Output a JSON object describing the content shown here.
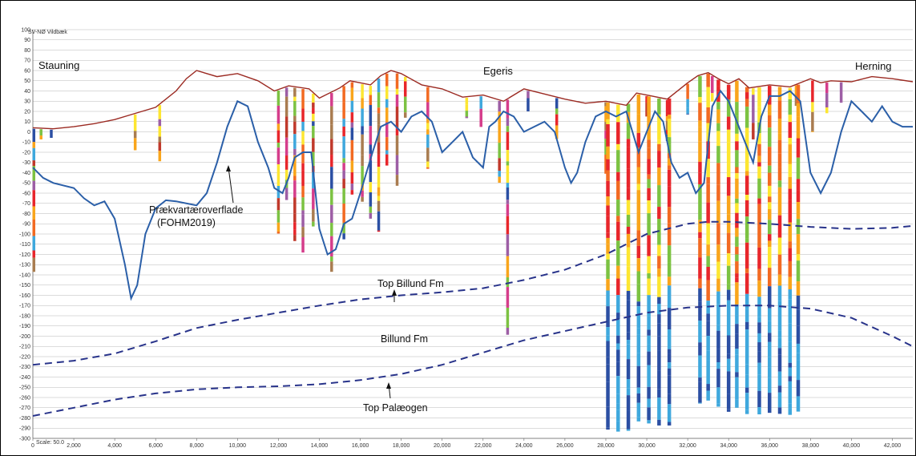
{
  "profile_name": "SV-NØ Vildbæk",
  "scale_label": "Scale: 50.0",
  "places": [
    {
      "name": "Stauning",
      "x": 0
    },
    {
      "name": "Egeris",
      "x": 22000
    },
    {
      "name": "Herning",
      "x": 42200
    }
  ],
  "annotations": {
    "prequaternary_line1": "Prækvartæroverflade",
    "prequaternary_line2": "(FOHM2019)",
    "top_billund": "Top Billund Fm",
    "billund": "Billund Fm",
    "top_palaeogen": "Top Palæogen"
  },
  "colors": {
    "terrain": "#9b2a22",
    "prequaternary": "#2b5fa8",
    "formation": "#28338a",
    "grid": "#b8b8b8"
  },
  "chart_data": {
    "type": "line",
    "xlim": [
      0,
      43000
    ],
    "ylim": [
      -300,
      100
    ],
    "x_ticks": [
      0,
      2000,
      4000,
      6000,
      8000,
      10000,
      12000,
      14000,
      16000,
      18000,
      20000,
      22000,
      24000,
      26000,
      28000,
      30000,
      32000,
      34000,
      36000,
      38000,
      40000,
      42000
    ],
    "x_tick_labels": [
      "0",
      "2,000",
      "4,000",
      "6,000",
      "8,000",
      "10,000",
      "12,000",
      "14,000",
      "16,000",
      "18,000",
      "20,000",
      "22,000",
      "24,000",
      "26,000",
      "28,000",
      "30,000",
      "32,000",
      "34,000",
      "36,000",
      "38,000",
      "40,000",
      "42,000"
    ],
    "y_ticks": [
      100,
      90,
      80,
      70,
      60,
      50,
      40,
      30,
      20,
      10,
      0,
      -10,
      -20,
      -30,
      -40,
      -50,
      -60,
      -70,
      -80,
      -90,
      -100,
      -110,
      -120,
      -130,
      -140,
      -150,
      -160,
      -170,
      -180,
      -190,
      -200,
      -210,
      -220,
      -230,
      -240,
      -250,
      -260,
      -270,
      -280,
      -290,
      -300
    ],
    "grid": true,
    "terrain": {
      "x": [
        0,
        1000,
        2000,
        3000,
        4000,
        5000,
        6000,
        7000,
        7500,
        8000,
        9000,
        10000,
        11000,
        11800,
        12500,
        13500,
        14000,
        15000,
        15500,
        16500,
        17000,
        17500,
        18000,
        19000,
        20000,
        21000,
        22000,
        23000,
        24000,
        25000,
        26000,
        27000,
        28000,
        29000,
        29500,
        30000,
        31000,
        32000,
        32500,
        33000,
        33500,
        34000,
        34500,
        35000,
        36000,
        37000,
        38000,
        38500,
        39000,
        40000,
        41000,
        42000,
        43000
      ],
      "y": [
        4,
        3,
        5,
        8,
        12,
        18,
        24,
        40,
        52,
        60,
        54,
        57,
        50,
        40,
        45,
        42,
        33,
        43,
        50,
        46,
        55,
        60,
        57,
        46,
        42,
        34,
        36,
        30,
        42,
        37,
        32,
        28,
        30,
        26,
        38,
        36,
        32,
        48,
        55,
        58,
        52,
        47,
        52,
        43,
        46,
        44,
        52,
        48,
        50,
        49,
        54,
        52,
        49
      ]
    },
    "prequaternary_surface": {
      "x": [
        0,
        500,
        1000,
        2000,
        2500,
        3000,
        3500,
        4000,
        4500,
        4800,
        5100,
        5500,
        6000,
        6500,
        7000,
        8000,
        8500,
        9000,
        9500,
        10000,
        10500,
        11000,
        11500,
        11800,
        12200,
        12500,
        12800,
        13200,
        13600,
        14000,
        14400,
        14800,
        15200,
        15600,
        16000,
        16300,
        16600,
        17000,
        17500,
        18000,
        18500,
        19000,
        19500,
        20000,
        20500,
        21000,
        21500,
        22000,
        22300,
        22600,
        23000,
        23500,
        24000,
        24500,
        25000,
        25500,
        26000,
        26300,
        26600,
        27000,
        27500,
        28000,
        28500,
        29000,
        29300,
        29600,
        30000,
        30400,
        30800,
        31200,
        31600,
        32000,
        32400,
        32800,
        33200,
        33600,
        34000,
        34400,
        34800,
        35200,
        35600,
        36000,
        36500,
        37000,
        37500,
        38000,
        38500,
        39000,
        39500,
        40000,
        40500,
        41000,
        41500,
        42000,
        42500,
        43000
      ],
      "y": [
        -35,
        -45,
        -50,
        -55,
        -65,
        -72,
        -68,
        -85,
        -130,
        -163,
        -150,
        -100,
        -75,
        -67,
        -68,
        -72,
        -60,
        -30,
        5,
        30,
        25,
        -10,
        -35,
        -55,
        -60,
        -45,
        -25,
        -20,
        -20,
        -95,
        -120,
        -115,
        -90,
        -85,
        -60,
        -40,
        -20,
        5,
        10,
        0,
        15,
        20,
        10,
        -20,
        -10,
        0,
        -25,
        -35,
        5,
        10,
        20,
        15,
        0,
        5,
        10,
        0,
        -35,
        -50,
        -40,
        -10,
        15,
        20,
        15,
        20,
        0,
        -20,
        0,
        20,
        10,
        -30,
        -45,
        -40,
        -60,
        -50,
        25,
        40,
        30,
        10,
        -10,
        -30,
        15,
        35,
        35,
        40,
        30,
        -40,
        -60,
        -40,
        0,
        30,
        20,
        10,
        25,
        10,
        5,
        5
      ]
    },
    "top_billund_fm": {
      "x": [
        0,
        2000,
        4000,
        6000,
        8000,
        10000,
        12000,
        14000,
        16000,
        18000,
        20000,
        22000,
        24000,
        26000,
        28000,
        30000,
        32000,
        33000,
        34000,
        36000,
        38000,
        40000,
        42000,
        43000
      ],
      "y": [
        -228,
        -224,
        -217,
        -205,
        -192,
        -184,
        -177,
        -170,
        -164,
        -160,
        -157,
        -153,
        -145,
        -135,
        -120,
        -100,
        -90,
        -88,
        -88,
        -90,
        -93,
        -95,
        -94,
        -92
      ]
    },
    "top_palaeogen": {
      "x": [
        0,
        2000,
        4000,
        6000,
        8000,
        10000,
        12000,
        14000,
        16000,
        18000,
        20000,
        22000,
        24000,
        26000,
        28000,
        30000,
        32000,
        34000,
        36000,
        38000,
        40000,
        42000,
        43000
      ],
      "y": [
        -278,
        -270,
        -262,
        -256,
        -252,
        -250,
        -249,
        -247,
        -243,
        -237,
        -228,
        -216,
        -204,
        -195,
        -186,
        -177,
        -172,
        -170,
        -170,
        -173,
        -182,
        -200,
        -210
      ]
    }
  }
}
